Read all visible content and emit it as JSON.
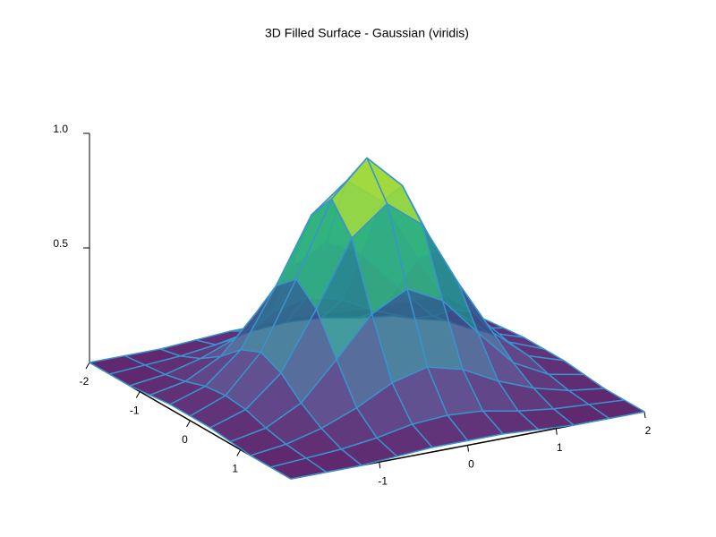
{
  "chart_data": {
    "type": "surface",
    "title": "3D Filled Surface - Gaussian (viridis)",
    "colormap": "viridis",
    "edgecolor": "#3a93cc",
    "x": [
      -2,
      -1.6,
      -1.2,
      -0.8,
      -0.4,
      0,
      0.4,
      0.8,
      1.2,
      1.6,
      2
    ],
    "y": [
      -2,
      -1.6,
      -1.2,
      -0.8,
      -0.4,
      0,
      0.4,
      0.8,
      1.2,
      1.6,
      2
    ],
    "z": [
      [
        0,
        0,
        0,
        0.01,
        0.02,
        0.02,
        0.02,
        0.01,
        0,
        0,
        0
      ],
      [
        0,
        0.01,
        0.02,
        0.04,
        0.07,
        0.08,
        0.07,
        0.04,
        0.02,
        0.01,
        0
      ],
      [
        0,
        0.02,
        0.06,
        0.12,
        0.2,
        0.24,
        0.2,
        0.12,
        0.06,
        0.02,
        0
      ],
      [
        0.01,
        0.04,
        0.12,
        0.28,
        0.45,
        0.53,
        0.45,
        0.28,
        0.12,
        0.04,
        0.01
      ],
      [
        0.02,
        0.07,
        0.2,
        0.45,
        0.73,
        0.85,
        0.73,
        0.45,
        0.2,
        0.07,
        0.02
      ],
      [
        0.02,
        0.08,
        0.24,
        0.53,
        0.85,
        1,
        0.85,
        0.53,
        0.24,
        0.08,
        0.02
      ],
      [
        0.02,
        0.07,
        0.2,
        0.45,
        0.73,
        0.85,
        0.73,
        0.45,
        0.2,
        0.07,
        0.02
      ],
      [
        0.01,
        0.04,
        0.12,
        0.28,
        0.45,
        0.53,
        0.45,
        0.28,
        0.12,
        0.04,
        0.01
      ],
      [
        0,
        0.02,
        0.06,
        0.12,
        0.2,
        0.24,
        0.2,
        0.12,
        0.06,
        0.02,
        0
      ],
      [
        0,
        0.01,
        0.02,
        0.04,
        0.07,
        0.08,
        0.07,
        0.04,
        0.02,
        0.01,
        0
      ],
      [
        0,
        0,
        0,
        0.01,
        0.02,
        0.02,
        0.02,
        0.01,
        0,
        0,
        0
      ]
    ],
    "xlim": [
      -2,
      2
    ],
    "ylim": [
      -2,
      2
    ],
    "zlim": [
      0,
      1
    ],
    "xticks": [
      -1,
      0,
      1,
      2
    ],
    "yticks": [
      -2,
      -1,
      0,
      1
    ],
    "zticks": [
      0.5,
      {
        "value": 1,
        "label": "1.0"
      }
    ]
  }
}
